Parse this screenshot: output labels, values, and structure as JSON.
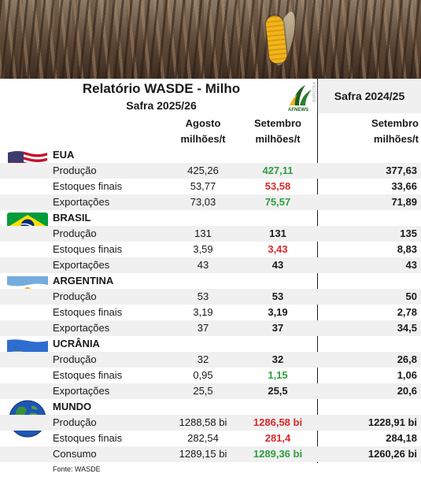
{
  "header": {
    "title": "Relatório WASDE - Milho",
    "subtitle": "Safra 2025/26",
    "logo_text": "AFNEWS",
    "logo_side_text": "AGRÍCOLA",
    "right_title": "Safra 2024/25"
  },
  "columns": {
    "agosto": "Agosto",
    "setembro": "Setembro",
    "setembro_prev": "Setembro",
    "unit": "milhões/t"
  },
  "colors": {
    "green": "#2e9e3e",
    "red": "#d92a2a",
    "shade": "#f0f0f0"
  },
  "countries": [
    {
      "name": "EUA",
      "flag": "usa-flag",
      "rows": [
        {
          "label": "Produção",
          "agosto": "425,26",
          "setembro": "427,11",
          "setembro_color": "green",
          "prev": "377,63"
        },
        {
          "label": "Estoques finais",
          "agosto": "53,77",
          "setembro": "53,58",
          "setembro_color": "red",
          "prev": "33,66"
        },
        {
          "label": "Exportações",
          "agosto": "73,03",
          "setembro": "75,57",
          "setembro_color": "green",
          "prev": "71,89"
        }
      ]
    },
    {
      "name": "BRASIL",
      "flag": "brazil-flag",
      "rows": [
        {
          "label": "Produção",
          "agosto": "131",
          "setembro": "131",
          "setembro_color": "black",
          "prev": "135"
        },
        {
          "label": "Estoques finais",
          "agosto": "3,59",
          "setembro": "3,43",
          "setembro_color": "red",
          "prev": "8,83"
        },
        {
          "label": "Exportações",
          "agosto": "43",
          "setembro": "43",
          "setembro_color": "black",
          "prev": "43"
        }
      ]
    },
    {
      "name": "ARGENTINA",
      "flag": "argentina-flag",
      "rows": [
        {
          "label": "Produção",
          "agosto": "53",
          "setembro": "53",
          "setembro_color": "black",
          "prev": "50"
        },
        {
          "label": "Estoques finais",
          "agosto": "3,19",
          "setembro": "3,19",
          "setembro_color": "black",
          "prev": "2,78"
        },
        {
          "label": "Exportações",
          "agosto": "37",
          "setembro": "37",
          "setembro_color": "black",
          "prev": "34,5"
        }
      ]
    },
    {
      "name": "UCRÂNIA",
      "flag": "ukraine-flag",
      "rows": [
        {
          "label": "Produção",
          "agosto": "32",
          "setembro": "32",
          "setembro_color": "black",
          "prev": "26,8"
        },
        {
          "label": "Estoques finais",
          "agosto": "0,95",
          "setembro": "1,15",
          "setembro_color": "green",
          "prev": "1,06"
        },
        {
          "label": "Exportações",
          "agosto": "25,5",
          "setembro": "25,5",
          "setembro_color": "black",
          "prev": "20,6"
        }
      ]
    },
    {
      "name": "MUNDO",
      "flag": "globe-icon",
      "rows": [
        {
          "label": "Produção",
          "agosto": "1288,58 bi",
          "setembro": "1286,58 bi",
          "setembro_color": "red",
          "prev": "1228,91 bi"
        },
        {
          "label": "Estoques finais",
          "agosto": "282,54",
          "setembro": "281,4",
          "setembro_color": "red",
          "prev": "284,18"
        },
        {
          "label": "Consumo",
          "agosto": "1289,15 bi",
          "setembro": "1289,36 bi",
          "setembro_color": "green",
          "prev": "1260,26 bi"
        }
      ]
    }
  ],
  "footer": "Fonte: WASDE"
}
